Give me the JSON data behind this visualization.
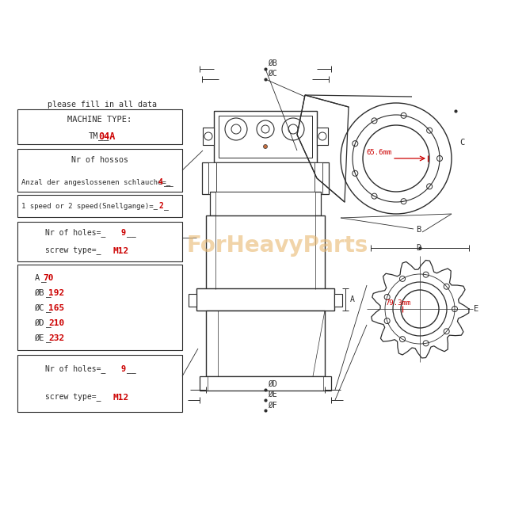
{
  "bg_color": "#ffffff",
  "line_color": "#2c2c2c",
  "red_color": "#cc0000",
  "orange_color": "#c87040",
  "watermark_color": "#e8b870",
  "text_color": "#2c2c2c",
  "header_text": "please fill in all data",
  "box1_line1": "MACHINE TYPE:",
  "box1_line2_prefix": "TM",
  "box1_line2_red": "04A",
  "box2_line1": "Nr of hossos",
  "box2_line2_prefix": "Anzal der angeslossenen schlauche=_",
  "box2_line2_red": "4",
  "box3_line_prefix": "1 speed or 2 speed(Snellgange)=_",
  "box3_line_red": "2",
  "box4_line1_prefix": "Nr of holes=_",
  "box4_line1_red": "9",
  "box4_line2_prefix": "screw type=_",
  "box4_line2_red": "M12",
  "box5_labels": [
    "A",
    "ØB",
    "ØC",
    "ØD",
    "ØE"
  ],
  "box5_values": [
    "70",
    "192",
    "165",
    "210",
    "232"
  ],
  "box6_line1_prefix": "Nr of holes=_",
  "box6_line1_red": "9",
  "box6_line2_prefix": "screw type=_",
  "box6_line2_red": "M12",
  "dim_phiB": "ØB",
  "dim_phiC": "ØC",
  "dim_phiD": "ØD",
  "dim_phiE": "ØE",
  "dim_phiF": "ØF",
  "dim_A": "A",
  "dim_B": "B",
  "dim_C": "C",
  "dim_D": "D",
  "dim_E": "E",
  "dim_65": "65.6mm",
  "dim_79": "79.3mm",
  "watermark": "ForHeavyParts"
}
